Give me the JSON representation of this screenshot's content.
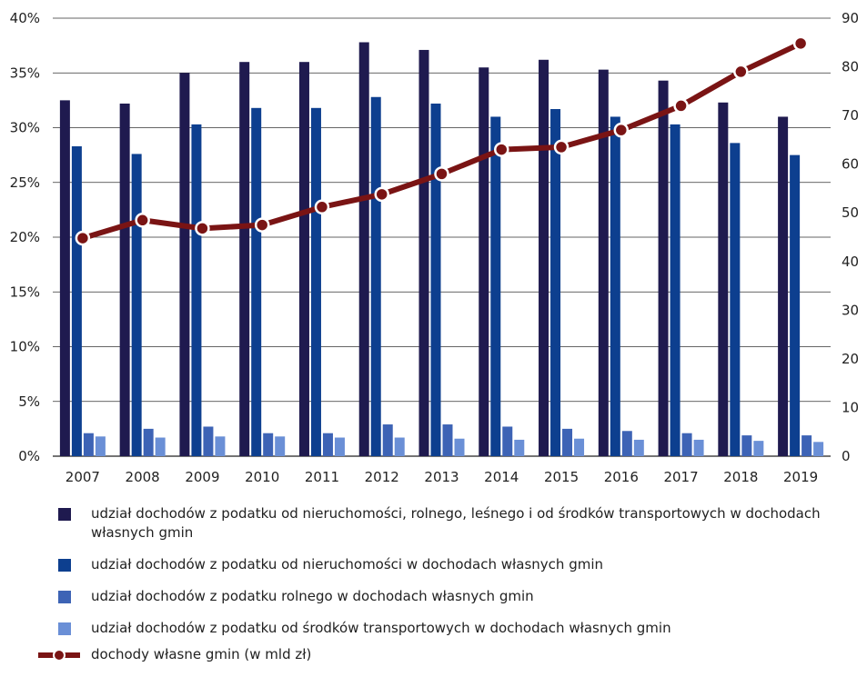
{
  "chart_data": {
    "type": "bar+line",
    "categories": [
      "2007",
      "2008",
      "2009",
      "2010",
      "2011",
      "2012",
      "2013",
      "2014",
      "2015",
      "2016",
      "2017",
      "2018",
      "2019"
    ],
    "left_axis": {
      "ylim": [
        0,
        40
      ],
      "ticks": [
        "0%",
        "5%",
        "10%",
        "15%",
        "20%",
        "25%",
        "30%",
        "35%",
        "40%"
      ]
    },
    "right_axis": {
      "ylim": [
        0,
        90
      ],
      "ticks": [
        "0",
        "10",
        "20",
        "30",
        "40",
        "50",
        "60",
        "70",
        "80",
        "90"
      ]
    },
    "grid": true,
    "legend_position": "bottom",
    "series": [
      {
        "name": "udział dochodów z podatku od nieruchomości, rolnego, leśnego i od środków transportowych w dochodach własnych gmin",
        "type": "bar",
        "axis": "left",
        "color": "#1f1a4f",
        "values": [
          32.5,
          32.2,
          35.0,
          36.0,
          36.0,
          37.8,
          37.1,
          35.5,
          36.2,
          35.3,
          34.3,
          32.3,
          31.0
        ]
      },
      {
        "name": "udział dochodów z podatku od nieruchomości w dochodach własnych gmin",
        "type": "bar",
        "axis": "left",
        "color": "#0d3f8f",
        "values": [
          28.3,
          27.6,
          30.3,
          31.8,
          31.8,
          32.8,
          32.2,
          31.0,
          31.7,
          31.0,
          30.3,
          28.6,
          27.5
        ]
      },
      {
        "name": "udział dochodów z podatku rolnego w dochodach własnych gmin",
        "type": "bar",
        "axis": "left",
        "color": "#3d63b5",
        "values": [
          2.1,
          2.5,
          2.7,
          2.1,
          2.1,
          2.9,
          2.9,
          2.7,
          2.5,
          2.3,
          2.1,
          1.9,
          1.9
        ]
      },
      {
        "name": "udział dochodów z podatku od środków transportowych w dochodach własnych gmin",
        "type": "bar",
        "axis": "left",
        "color": "#6a8fd6",
        "values": [
          1.8,
          1.7,
          1.8,
          1.8,
          1.7,
          1.7,
          1.6,
          1.5,
          1.6,
          1.5,
          1.5,
          1.4,
          1.3
        ]
      },
      {
        "name": "dochody własne gmin (w mld zł)",
        "type": "line",
        "axis": "right",
        "color": "#7a1414",
        "values": [
          44.8,
          48.5,
          46.8,
          47.5,
          51.2,
          53.8,
          58.0,
          63.0,
          63.5,
          67.0,
          72.0,
          79.0,
          84.8
        ]
      }
    ]
  }
}
